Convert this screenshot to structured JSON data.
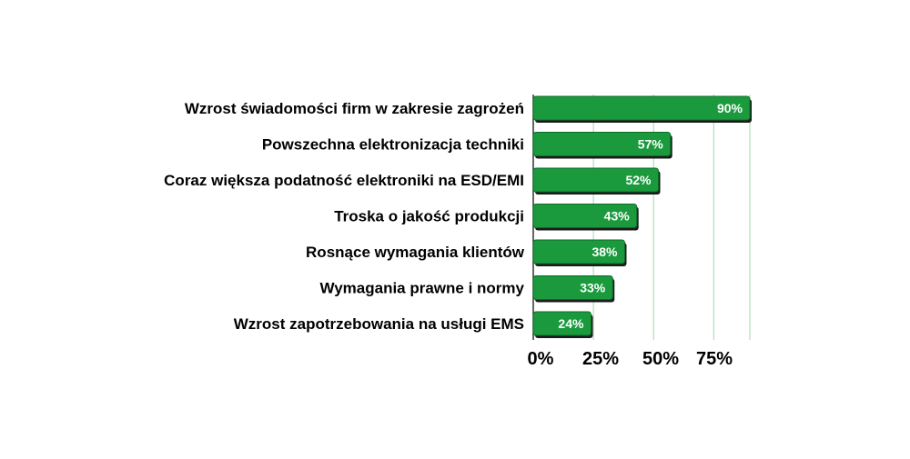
{
  "chart_data": {
    "type": "bar",
    "orientation": "horizontal",
    "categories": [
      "Wzrost świadomości firm w zakresie zagrożeń",
      "Powszechna elektronizacja techniki",
      "Coraz większa podatność elektroniki na ESD/EMI",
      "Troska o jakość produkcji",
      "Rosnące wymagania klientów",
      "Wymagania prawne i normy",
      "Wzrost zapotrzebowania na usługi EMS"
    ],
    "values": [
      90,
      57,
      52,
      43,
      38,
      33,
      24
    ],
    "value_labels": [
      "90%",
      "57%",
      "52%",
      "43%",
      "38%",
      "33%",
      "24%"
    ],
    "xlim": [
      0,
      90
    ],
    "x_ticks": [
      0,
      25,
      50,
      75
    ],
    "x_tick_labels": [
      "0%",
      "25%",
      "50%",
      "75%"
    ],
    "grid": true,
    "bar_color": "#1a9a3c",
    "grid_color": "#9fd9ae",
    "title": "",
    "xlabel": "",
    "ylabel": ""
  }
}
